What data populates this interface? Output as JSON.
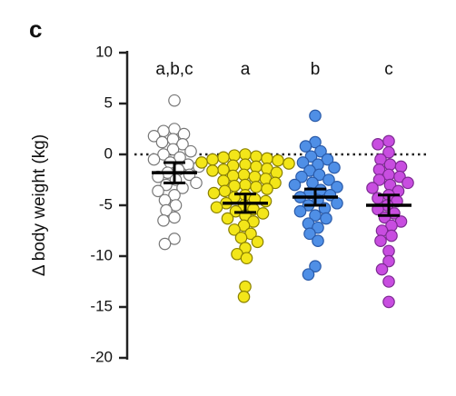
{
  "chart_data": {
    "type": "dot",
    "panel": "c",
    "ylabel": "Δ body weight (kg)",
    "ylim": [
      -20,
      10
    ],
    "yticks": [
      10,
      5,
      0,
      -5,
      -10,
      -15,
      -20
    ],
    "hline": 0,
    "groups": [
      {
        "label": "a,b,c",
        "color": "#ffffff",
        "edge": "#777777",
        "mean": -1.8,
        "error": 1.0,
        "values": [
          5.3,
          2.5,
          2.3,
          2.0,
          1.8,
          1.5,
          1.2,
          1.0,
          0.5,
          0.3,
          0,
          -0.3,
          -0.5,
          -0.8,
          -1.0,
          -1.2,
          -1.5,
          -1.8,
          -2.0,
          -2.2,
          -2.5,
          -2.8,
          -3.0,
          -3.3,
          -3.6,
          -4.0,
          -4.5,
          -5.0,
          -5.5,
          -6.2,
          -6.5,
          -8.3,
          -8.8
        ]
      },
      {
        "label": "a",
        "color": "#f3e619",
        "edge": "#8a8000",
        "mean": -4.8,
        "error": 0.9,
        "values": [
          0,
          -0.1,
          -0.2,
          -0.3,
          -0.4,
          -0.5,
          -0.6,
          -0.8,
          -0.9,
          -1.0,
          -1.1,
          -1.2,
          -1.4,
          -1.5,
          -1.6,
          -1.8,
          -2.0,
          -2.1,
          -2.2,
          -2.4,
          -2.6,
          -2.8,
          -3.0,
          -3.1,
          -3.2,
          -3.4,
          -3.6,
          -3.8,
          -4.0,
          -4.2,
          -4.4,
          -4.6,
          -4.8,
          -5.0,
          -5.2,
          -5.4,
          -5.6,
          -5.8,
          -6.0,
          -6.3,
          -6.6,
          -7.0,
          -7.4,
          -7.8,
          -8.2,
          -8.6,
          -9.2,
          -9.8,
          -10.2,
          -13.0,
          -14.0
        ]
      },
      {
        "label": "b",
        "color": "#4f8fe6",
        "edge": "#2a5aa8",
        "mean": -4.2,
        "error": 0.8,
        "values": [
          3.8,
          1.2,
          0.8,
          0.3,
          -0.2,
          -0.5,
          -0.8,
          -1.0,
          -1.3,
          -1.6,
          -2.0,
          -2.2,
          -2.5,
          -2.8,
          -3.0,
          -3.2,
          -3.5,
          -3.8,
          -4.0,
          -4.2,
          -4.5,
          -4.8,
          -5.0,
          -5.3,
          -5.6,
          -6.0,
          -6.3,
          -6.8,
          -7.2,
          -7.8,
          -8.5,
          -11.0,
          -11.8
        ]
      },
      {
        "label": "c",
        "color": "#c84de0",
        "edge": "#7d2a92",
        "mean": -5.0,
        "error": 1.0,
        "values": [
          1.3,
          1.0,
          0.2,
          -0.5,
          -1.0,
          -1.2,
          -1.5,
          -2.0,
          -2.2,
          -2.5,
          -2.8,
          -3.0,
          -3.3,
          -3.6,
          -4.0,
          -4.3,
          -4.6,
          -5.0,
          -5.4,
          -5.8,
          -6.2,
          -6.6,
          -7.0,
          -7.5,
          -8.0,
          -8.5,
          -9.5,
          -10.5,
          -11.3,
          -12.5,
          -14.5
        ]
      }
    ]
  }
}
